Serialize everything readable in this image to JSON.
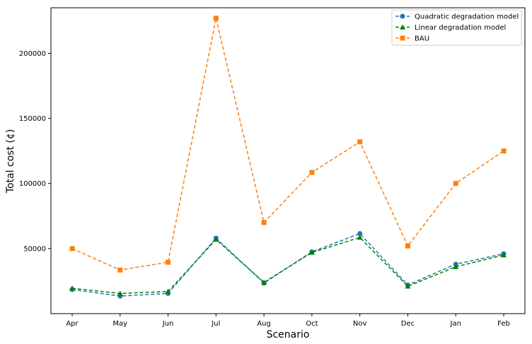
{
  "chart_data": {
    "type": "line",
    "xlabel": "Scenario",
    "ylabel": "Total cost (¢)",
    "categories": [
      "Apr",
      "May",
      "Jun",
      "Jul",
      "Aug",
      "Oct",
      "Nov",
      "Dec",
      "Jan",
      "Feb"
    ],
    "ylim": [
      0,
      235000
    ],
    "yticks": [
      50000,
      100000,
      150000,
      200000
    ],
    "grid": false,
    "legend_position": "top-right",
    "series": [
      {
        "name": "Quadratic degradation model",
        "marker": "circle",
        "color": "#1f77b4",
        "values": [
          18500,
          13500,
          15500,
          58000,
          23500,
          47500,
          61500,
          22000,
          38000,
          46000
        ]
      },
      {
        "name": "Linear degradation model",
        "marker": "triangle",
        "color": "#008000",
        "values": [
          19500,
          15500,
          17000,
          57000,
          24000,
          47000,
          58500,
          21000,
          36000,
          45000
        ]
      },
      {
        "name": "BAU",
        "marker": "square",
        "color": "#ff7f0e",
        "values": [
          50000,
          33500,
          39500,
          227000,
          70000,
          108500,
          132000,
          52000,
          100000,
          125000
        ]
      }
    ]
  }
}
